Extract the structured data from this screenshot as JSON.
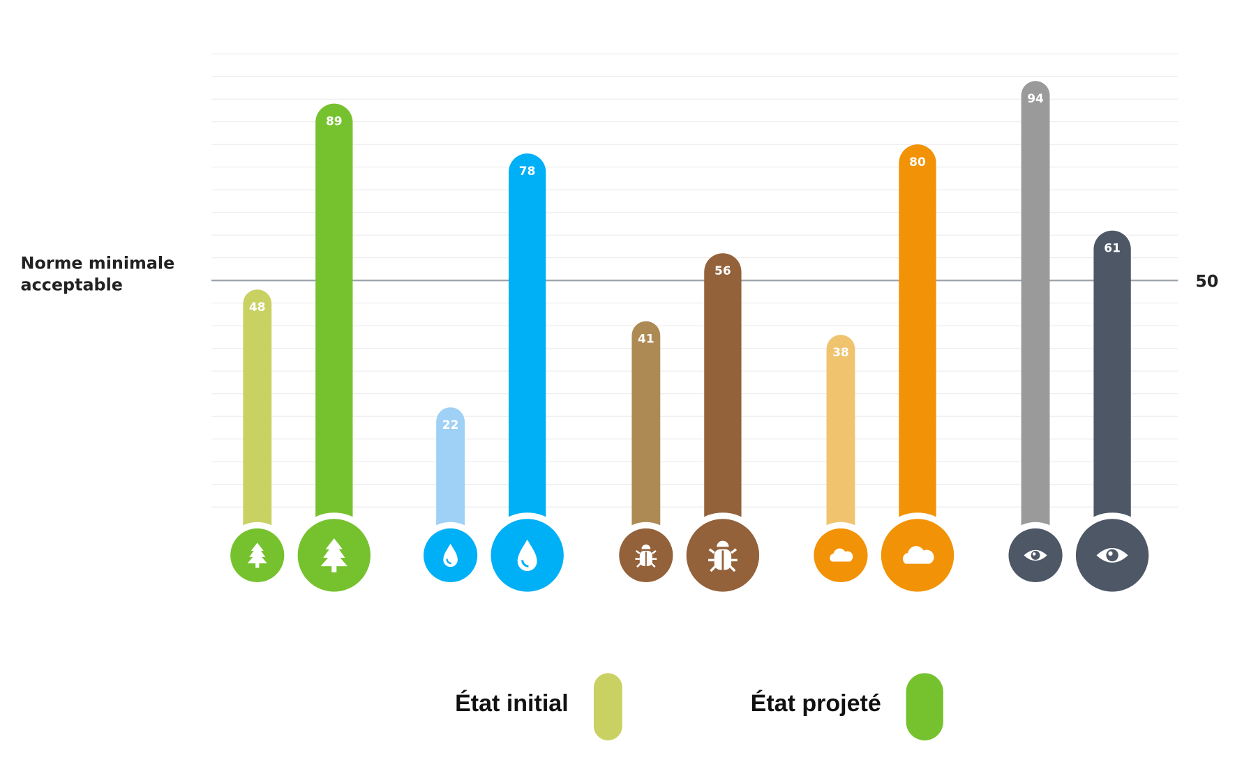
{
  "chart_data": {
    "type": "bar",
    "categories": [
      null,
      null,
      null,
      null,
      null
    ],
    "series": [
      {
        "name": "État initial",
        "color": "#c8d162",
        "colors": [
          "#c8d162",
          "#9fd0f5",
          "#ad8a54",
          "#f0c46e",
          "#9a9a9a"
        ],
        "values": [
          48,
          22,
          41,
          38,
          94
        ]
      },
      {
        "name": "État projeté",
        "color": "#76c22e",
        "colors": [
          "#76c22e",
          "#00b0f6",
          "#93613a",
          "#f29206",
          "#4d5766"
        ],
        "values": [
          89,
          78,
          56,
          80,
          61
        ]
      }
    ],
    "ylim": [
      0,
      100
    ],
    "grid": true,
    "reference_line": {
      "value": 50,
      "label": "Norme minimale acceptable",
      "color": "#9aa1a8"
    }
  }
}
